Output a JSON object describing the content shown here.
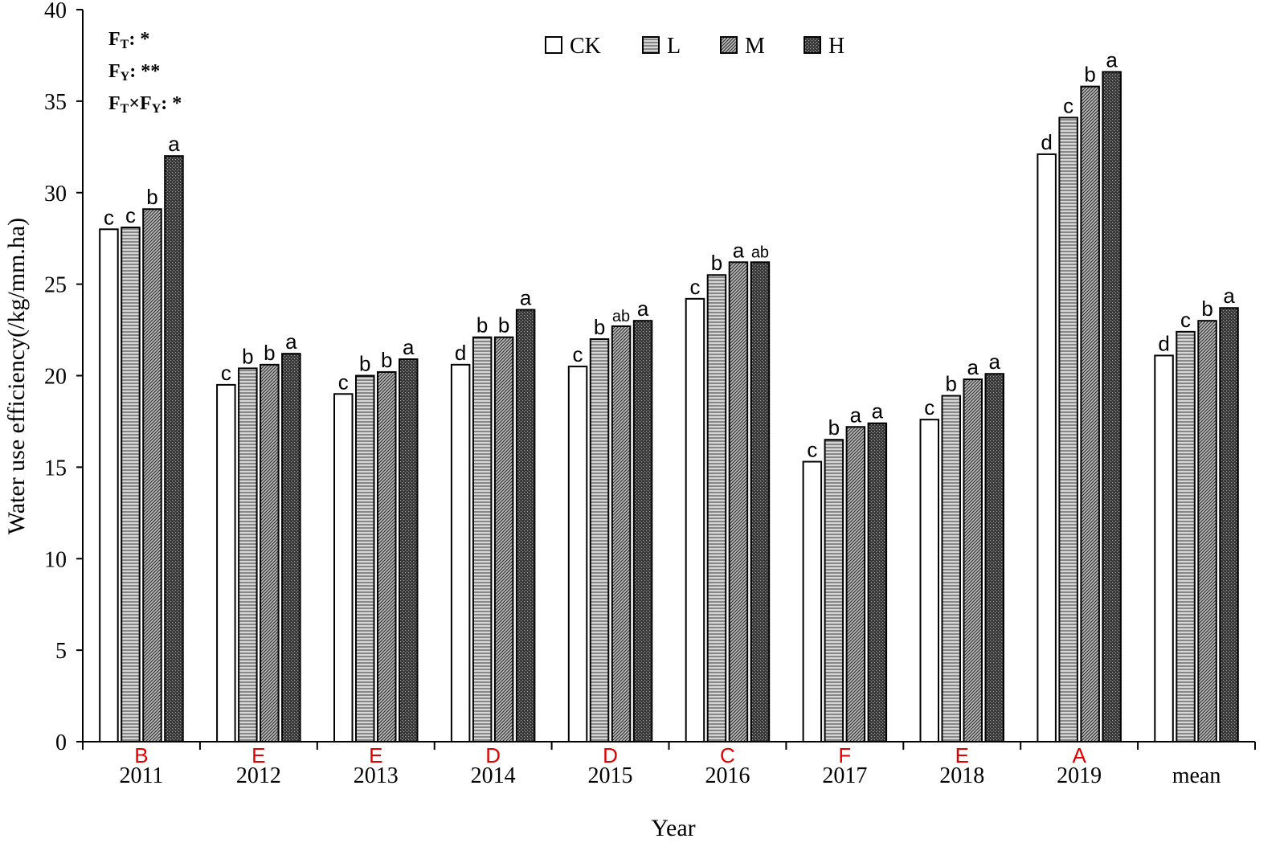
{
  "chart_data": {
    "type": "bar",
    "xlabel": "Year",
    "ylabel": "Water use efficiency(/kg/mm.ha)",
    "ylim": [
      0,
      40
    ],
    "yticks": [
      0,
      5,
      10,
      15,
      20,
      25,
      30,
      35,
      40
    ],
    "grid": false,
    "legend_position": "top-center",
    "categories": [
      "2011",
      "2012",
      "2013",
      "2014",
      "2015",
      "2016",
      "2017",
      "2018",
      "2019",
      "mean"
    ],
    "year_letters": [
      "B",
      "E",
      "E",
      "D",
      "D",
      "C",
      "F",
      "E",
      "A",
      ""
    ],
    "year_letter_color": "#e00000",
    "series": [
      {
        "name": "CK",
        "pattern": "open",
        "values": [
          28.0,
          19.5,
          19.0,
          20.6,
          20.5,
          24.2,
          15.3,
          17.6,
          32.1,
          21.1
        ],
        "letters": [
          "c",
          "c",
          "c",
          "d",
          "c",
          "c",
          "c",
          "c",
          "d",
          "d"
        ]
      },
      {
        "name": "L",
        "pattern": "horizontal-lines",
        "values": [
          28.1,
          20.4,
          20.0,
          22.1,
          22.0,
          25.5,
          16.5,
          18.9,
          34.1,
          22.4
        ],
        "letters": [
          "c",
          "b",
          "b",
          "b",
          "b",
          "b",
          "b",
          "b",
          "c",
          "c"
        ]
      },
      {
        "name": "M",
        "pattern": "diagonal-lines",
        "values": [
          29.1,
          20.6,
          20.2,
          22.1,
          22.7,
          26.2,
          17.2,
          19.8,
          35.8,
          23.0
        ],
        "letters": [
          "b",
          "b",
          "b",
          "b",
          "ab",
          "a",
          "a",
          "a",
          "b",
          "b"
        ]
      },
      {
        "name": "H",
        "pattern": "dark-dots",
        "values": [
          32.0,
          21.2,
          20.9,
          23.6,
          23.0,
          26.2,
          17.4,
          20.1,
          36.6,
          23.7
        ],
        "letters": [
          "a",
          "a",
          "a",
          "a",
          "a",
          "ab",
          "a",
          "a",
          "a",
          "a"
        ]
      }
    ],
    "stats": [
      {
        "label": "F",
        "sub": "T",
        "value": ": *"
      },
      {
        "label": "F",
        "sub": "Y",
        "value": ": **"
      },
      {
        "label": "F",
        "sub": "T",
        "label2": "×F",
        "sub2": "Y",
        "value": ": *"
      }
    ]
  }
}
